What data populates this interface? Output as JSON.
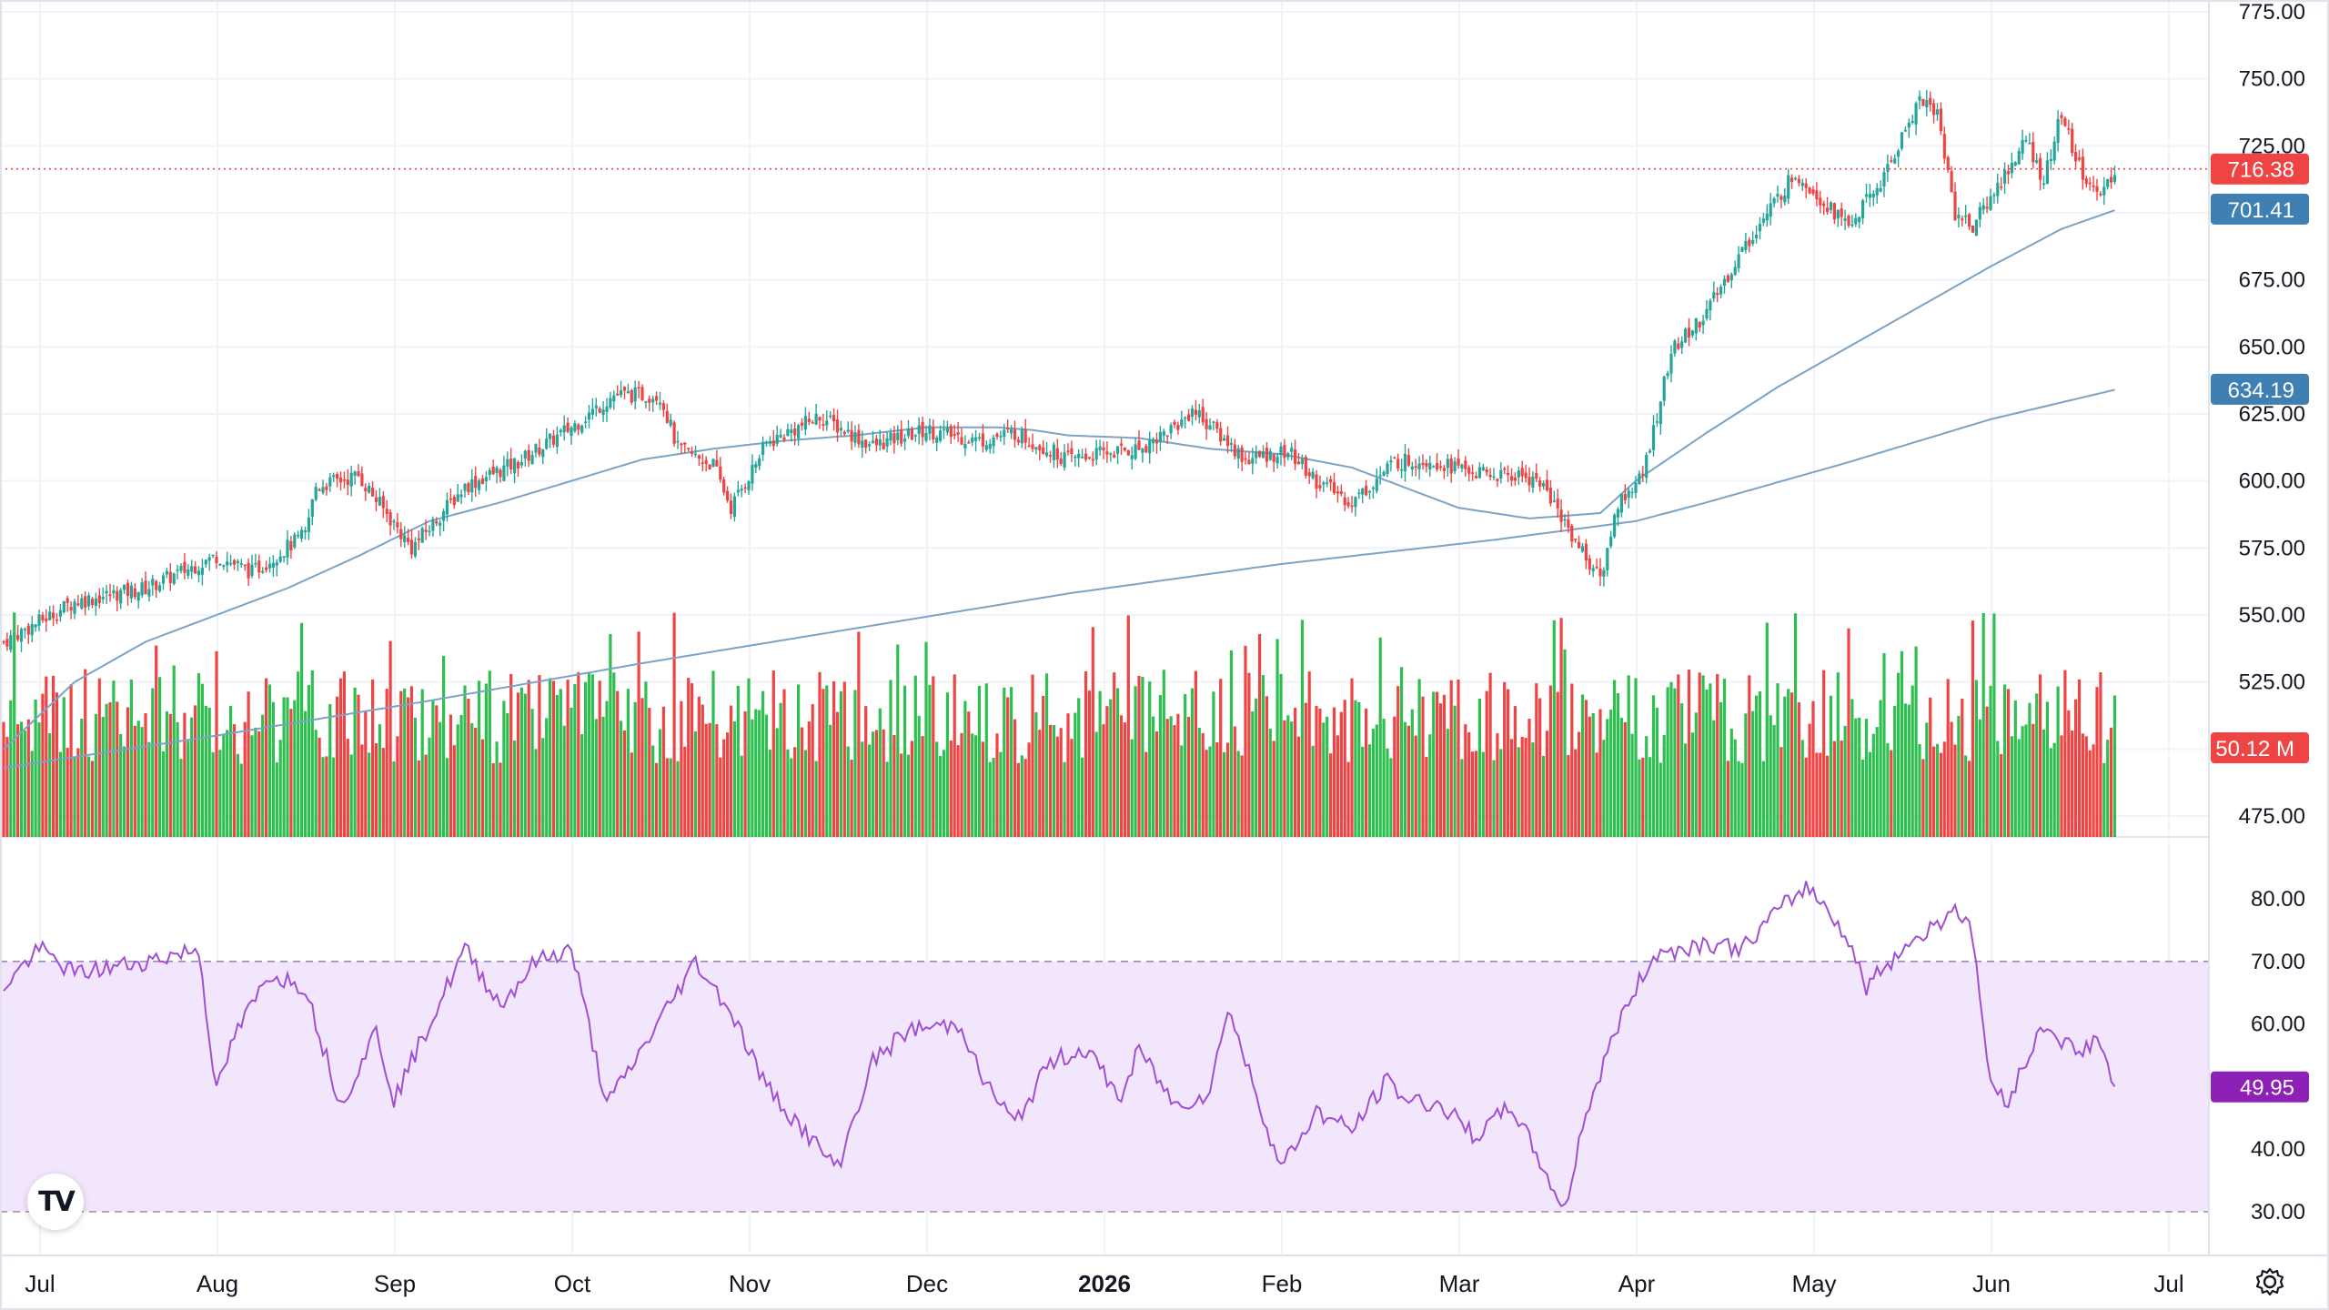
{
  "chart_data": {
    "type": "candlestick",
    "price_axis": {
      "ticks": [
        "775.00",
        "750.00",
        "725.00",
        "675.00",
        "650.00",
        "625.00",
        "600.00",
        "575.00",
        "550.00",
        "525.00",
        "475.00"
      ],
      "range": [
        475,
        780
      ]
    },
    "price_labels": {
      "last_price": "716.38",
      "ma_fast": "701.41",
      "ma_slow": "634.19",
      "volume": "50.12 M",
      "rsi": "49.95"
    },
    "rsi_axis": {
      "ticks": [
        "80.00",
        "70.00",
        "60.00",
        "50.00",
        "40.00",
        "30.00"
      ],
      "range": [
        27,
        86
      ],
      "band": [
        30,
        70
      ]
    },
    "time_axis": [
      "Jul",
      "Aug",
      "Sep",
      "Oct",
      "Nov",
      "Dec",
      "2026",
      "Feb",
      "Mar",
      "Apr",
      "May",
      "Jun",
      "Jul"
    ],
    "time_axis_bold": "2026",
    "close_anchors": [
      [
        0,
        540
      ],
      [
        20,
        555
      ],
      [
        40,
        560
      ],
      [
        60,
        572
      ],
      [
        70,
        566
      ],
      [
        85,
        580
      ],
      [
        88,
        598
      ],
      [
        100,
        602
      ],
      [
        115,
        575
      ],
      [
        130,
        598
      ],
      [
        145,
        607
      ],
      [
        160,
        620
      ],
      [
        172,
        632
      ],
      [
        185,
        632
      ],
      [
        190,
        612
      ],
      [
        200,
        606
      ],
      [
        205,
        590
      ],
      [
        215,
        614
      ],
      [
        230,
        624
      ],
      [
        245,
        613
      ],
      [
        260,
        619
      ],
      [
        275,
        615
      ],
      [
        285,
        618
      ],
      [
        300,
        608
      ],
      [
        308,
        610
      ],
      [
        320,
        612
      ],
      [
        332,
        622
      ],
      [
        335,
        627
      ],
      [
        350,
        608
      ],
      [
        362,
        611
      ],
      [
        370,
        600
      ],
      [
        380,
        592
      ],
      [
        392,
        607
      ],
      [
        402,
        608
      ],
      [
        410,
        605
      ],
      [
        418,
        602
      ],
      [
        428,
        602
      ],
      [
        433,
        600
      ],
      [
        443,
        578
      ],
      [
        450,
        563
      ],
      [
        455,
        592
      ],
      [
        462,
        602
      ],
      [
        470,
        648
      ],
      [
        480,
        663
      ],
      [
        490,
        686
      ],
      [
        505,
        715
      ],
      [
        520,
        695
      ],
      [
        530,
        713
      ],
      [
        540,
        743
      ],
      [
        545,
        737
      ],
      [
        550,
        700
      ],
      [
        555,
        695
      ],
      [
        570,
        727
      ],
      [
        575,
        712
      ],
      [
        580,
        737
      ],
      [
        584,
        720
      ],
      [
        590,
        705
      ],
      [
        595,
        716
      ]
    ],
    "ma_fast_anchors": [
      [
        0,
        500
      ],
      [
        20,
        525
      ],
      [
        40,
        540
      ],
      [
        60,
        550
      ],
      [
        80,
        560
      ],
      [
        100,
        572
      ],
      [
        120,
        585
      ],
      [
        140,
        592
      ],
      [
        160,
        600
      ],
      [
        180,
        608
      ],
      [
        200,
        612
      ],
      [
        220,
        615
      ],
      [
        240,
        617
      ],
      [
        260,
        620
      ],
      [
        280,
        620
      ],
      [
        290,
        619
      ],
      [
        300,
        617
      ],
      [
        320,
        616
      ],
      [
        340,
        612
      ],
      [
        360,
        610
      ],
      [
        380,
        605
      ],
      [
        400,
        595
      ],
      [
        410,
        590
      ],
      [
        430,
        586
      ],
      [
        450,
        588
      ],
      [
        460,
        600
      ],
      [
        480,
        618
      ],
      [
        500,
        635
      ],
      [
        520,
        650
      ],
      [
        540,
        665
      ],
      [
        560,
        680
      ],
      [
        580,
        694
      ],
      [
        595,
        701
      ]
    ],
    "ma_slow_anchors": [
      [
        0,
        493
      ],
      [
        60,
        505
      ],
      [
        120,
        518
      ],
      [
        180,
        532
      ],
      [
        240,
        545
      ],
      [
        300,
        558
      ],
      [
        360,
        569
      ],
      [
        420,
        578
      ],
      [
        460,
        585
      ],
      [
        480,
        592
      ],
      [
        520,
        607
      ],
      [
        560,
        623
      ],
      [
        595,
        634
      ]
    ],
    "rsi_anchors": [
      [
        0,
        66
      ],
      [
        10,
        72
      ],
      [
        20,
        68
      ],
      [
        40,
        70
      ],
      [
        55,
        72
      ],
      [
        60,
        49
      ],
      [
        65,
        58
      ],
      [
        75,
        68
      ],
      [
        85,
        66
      ],
      [
        95,
        47
      ],
      [
        105,
        59
      ],
      [
        110,
        48
      ],
      [
        120,
        60
      ],
      [
        130,
        72
      ],
      [
        140,
        63
      ],
      [
        150,
        70
      ],
      [
        160,
        72
      ],
      [
        170,
        47
      ],
      [
        180,
        56
      ],
      [
        195,
        70
      ],
      [
        205,
        62
      ],
      [
        215,
        50
      ],
      [
        230,
        40
      ],
      [
        235,
        37
      ],
      [
        245,
        54
      ],
      [
        255,
        59
      ],
      [
        270,
        60
      ],
      [
        275,
        52
      ],
      [
        285,
        44
      ],
      [
        295,
        54
      ],
      [
        305,
        56
      ],
      [
        315,
        48
      ],
      [
        320,
        56
      ],
      [
        330,
        47
      ],
      [
        340,
        49
      ],
      [
        345,
        63
      ],
      [
        350,
        54
      ],
      [
        360,
        37
      ],
      [
        370,
        46
      ],
      [
        380,
        43
      ],
      [
        390,
        51
      ],
      [
        395,
        48
      ],
      [
        405,
        47
      ],
      [
        415,
        42
      ],
      [
        425,
        47
      ],
      [
        433,
        38
      ],
      [
        440,
        30
      ],
      [
        445,
        44
      ],
      [
        455,
        60
      ],
      [
        465,
        71
      ],
      [
        480,
        73
      ],
      [
        490,
        72
      ],
      [
        500,
        78
      ],
      [
        508,
        82
      ],
      [
        515,
        78
      ],
      [
        520,
        73
      ],
      [
        525,
        66
      ],
      [
        535,
        72
      ],
      [
        545,
        76
      ],
      [
        550,
        79
      ],
      [
        555,
        74
      ],
      [
        560,
        50
      ],
      [
        565,
        48
      ],
      [
        575,
        60
      ],
      [
        585,
        55
      ],
      [
        590,
        58
      ],
      [
        595,
        50
      ]
    ]
  },
  "logo": "TV",
  "icons": {
    "settings": "settings-gear-icon"
  },
  "colors": {
    "up": "#26a69a",
    "up_bright": "#2fbe50",
    "down": "#ef4444",
    "ma_line": "#7aa3c6",
    "ma_label": "#3e7fb4",
    "rsi_line": "#a04fd4",
    "rsi_band": "#f2e6fd",
    "rsi_label": "#8e21b5",
    "last_line": "#ef4444",
    "axis_text": "#131722",
    "grid": "#f0f3fa"
  }
}
